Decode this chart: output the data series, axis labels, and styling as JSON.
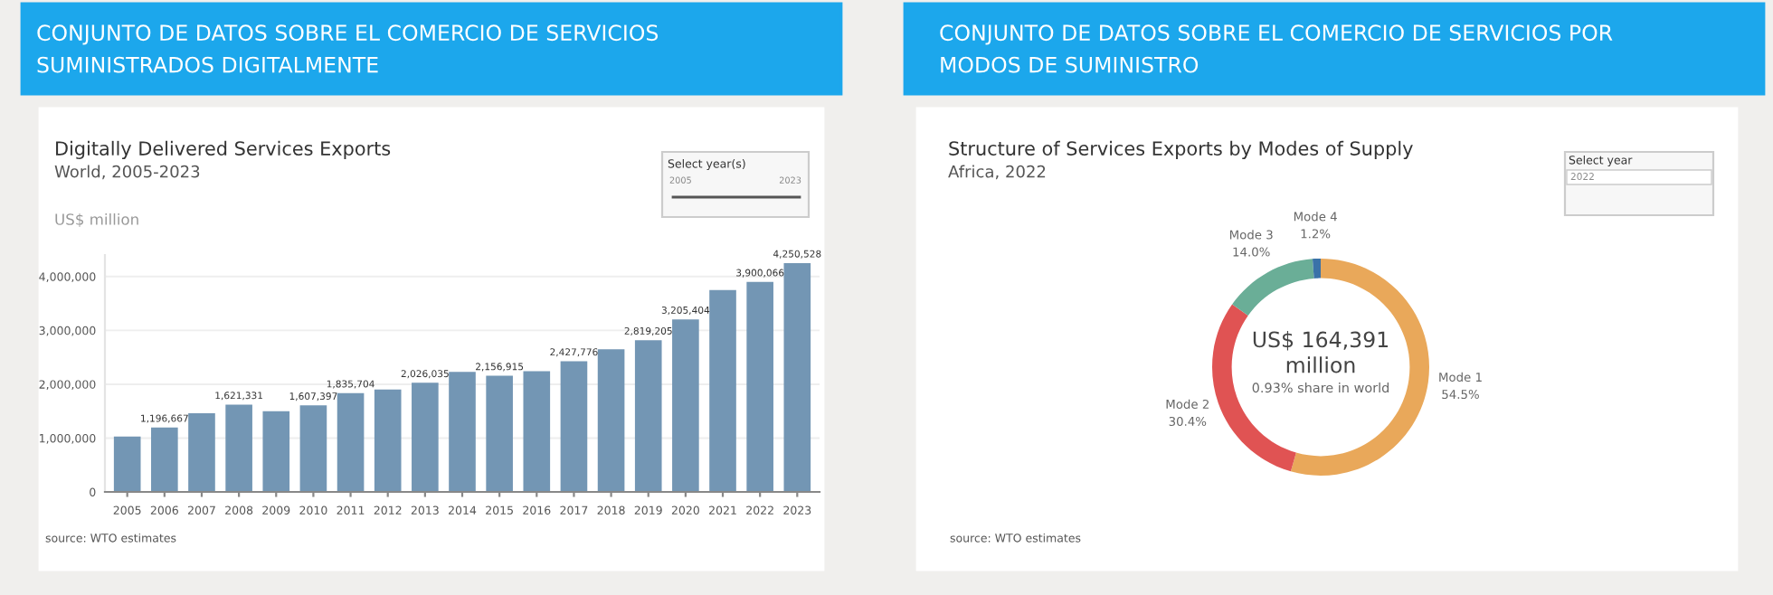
{
  "chart_data": [
    {
      "type": "bar",
      "title": "Digitally Delivered Services Exports",
      "subtitle": "World, 2005-2023",
      "ylabel": "US$ million",
      "categories": [
        "2005",
        "2006",
        "2007",
        "2008",
        "2009",
        "2010",
        "2011",
        "2012",
        "2013",
        "2014",
        "2015",
        "2016",
        "2017",
        "2018",
        "2019",
        "2020",
        "2021",
        "2022",
        "2023"
      ],
      "series": [
        {
          "color": "#7396b4",
          "values": [
            1030000,
            1196667,
            1460000,
            1621331,
            1500000,
            1607397,
            1835704,
            1900000,
            2026035,
            2230000,
            2156915,
            2240000,
            2427776,
            2650000,
            2819205,
            3205404,
            3750000,
            3900066,
            4250528
          ],
          "value_labels": [
            null,
            "1,196,667",
            null,
            "1,621,331",
            null,
            "1,607,397",
            "1,835,704",
            null,
            "2,026,035",
            null,
            "2,156,915",
            null,
            "2,427,776",
            null,
            "2,819,205",
            "3,205,404",
            null,
            "3,900,066",
            "4,250,528"
          ]
        }
      ],
      "ylim": [
        0,
        4400000
      ],
      "yticks": [
        {
          "value": 0,
          "label": "0"
        },
        {
          "value": 1000000,
          "label": "1,000,000"
        },
        {
          "value": 2000000,
          "label": "2,000,000"
        },
        {
          "value": 3000000,
          "label": "3,000,000"
        },
        {
          "value": 4000000,
          "label": "4,000,000"
        }
      ],
      "grid": "y",
      "legend": false,
      "annotations": [
        "CONJUNTO DE DATOS SOBRE EL COMERCIO DE SERVICIOS\nSUMINISTRADOS DIGITALMENTE",
        "Select year(s)",
        "2005",
        "2023",
        "source: WTO estimates"
      ]
    },
    {
      "type": "donut",
      "title": "Structure of Services Exports by Modes of Supply",
      "subtitle": "Africa, 2022",
      "categories": [
        "Mode 1",
        "Mode 2",
        "Mode 3",
        "Mode 4"
      ],
      "values": [
        54.5,
        30.4,
        14.0,
        1.2
      ],
      "colors": [
        "#e9a85a",
        "#e05353",
        "#6aae97",
        "#3a72a8"
      ],
      "legend": false,
      "value_labels": [
        "54.5%",
        "30.4%",
        "14.0%",
        "1.2%"
      ],
      "annotations": [
        "CONJUNTO DE DATOS SOBRE EL COMERCIO DE SERVICIOS POR\nMODOS DE SUMINISTRO",
        "Select year",
        "2022",
        "US$ 164,391\nmillion",
        "0.93% share in world",
        "source: WTO estimates"
      ]
    }
  ]
}
